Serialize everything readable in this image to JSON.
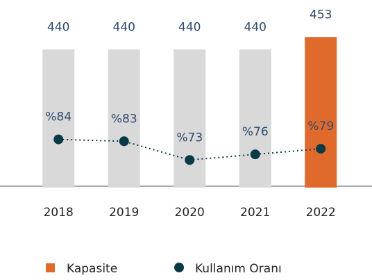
{
  "chart_data": {
    "type": "bar-line",
    "categories": [
      "2018",
      "2019",
      "2020",
      "2021",
      "2022"
    ],
    "series": [
      {
        "name": "Kapasite",
        "type": "bar",
        "color": "#d9d9d9",
        "highlight_color": "#e06a2b",
        "values": [
          440,
          440,
          440,
          440,
          453
        ]
      },
      {
        "name": "Kullanım Oranı",
        "type": "line",
        "axis": "y2",
        "color": "#0b3a47",
        "values": [
          84,
          83,
          73,
          76,
          79
        ],
        "value_labels": [
          "%84",
          "%83",
          "%73",
          "%76",
          "%79"
        ]
      }
    ],
    "ylim": [
      298,
      477
    ],
    "y2lim": [
      59,
      151
    ],
    "legend": "bottom"
  }
}
